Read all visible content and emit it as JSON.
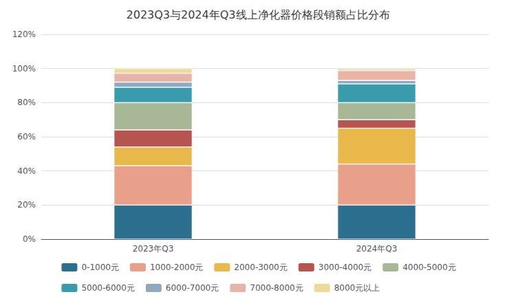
{
  "chart_data": {
    "type": "bar",
    "stacked": true,
    "title": "2023Q3与2024年Q3线上净化器价格段销额占比分布",
    "categories": [
      "2023年Q3",
      "2024年Q3"
    ],
    "series": [
      {
        "name": "0-1000元",
        "color": "#2B6E8E",
        "values": [
          20.0,
          20.0
        ]
      },
      {
        "name": "1000-2000元",
        "color": "#E8A08A",
        "values": [
          23.0,
          24.0
        ]
      },
      {
        "name": "2000-3000元",
        "color": "#E8B84B",
        "values": [
          11.0,
          21.0
        ]
      },
      {
        "name": "3000-4000元",
        "color": "#B85450",
        "values": [
          10.0,
          5.0
        ]
      },
      {
        "name": "4000-5000元",
        "color": "#A8B896",
        "values": [
          16.0,
          10.0
        ]
      },
      {
        "name": "5000-6000元",
        "color": "#3A9BAD",
        "values": [
          9.0,
          11.0
        ]
      },
      {
        "name": "6000-7000元",
        "color": "#8FAABF",
        "values": [
          3.0,
          2.0
        ]
      },
      {
        "name": "7000-8000元",
        "color": "#E8B4A8",
        "values": [
          5.2,
          5.8
        ]
      },
      {
        "name": "8000元以上",
        "color": "#F0D898",
        "values": [
          2.8,
          1.2
        ]
      }
    ],
    "ylim": [
      0,
      120
    ],
    "yticks": [
      {
        "value": 0,
        "label": "0%"
      },
      {
        "value": 20,
        "label": "20%"
      },
      {
        "value": 40,
        "label": "40%"
      },
      {
        "value": 60,
        "label": "60%"
      },
      {
        "value": 80,
        "label": "80%"
      },
      {
        "value": 100,
        "label": "100%"
      },
      {
        "value": 120,
        "label": "120%"
      }
    ],
    "grid": true,
    "legend": "bottom"
  }
}
